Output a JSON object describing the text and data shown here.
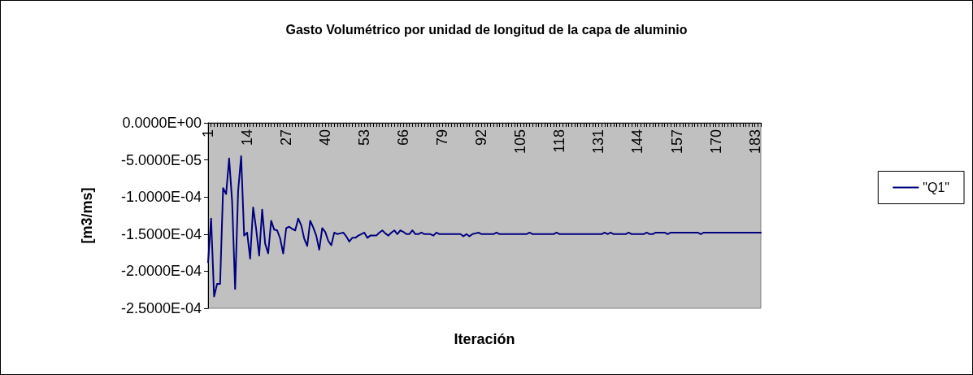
{
  "chart_data": {
    "type": "line",
    "title": "Gasto Volumétrico por unidad de longitud de la capa de aluminio",
    "xlabel": "Iteración",
    "ylabel": "[m3/ms]",
    "categories": [
      "1",
      null,
      null,
      null,
      null,
      null,
      null,
      null,
      null,
      null,
      null,
      null,
      null,
      "14",
      null,
      null,
      null,
      null,
      null,
      null,
      null,
      null,
      null,
      null,
      null,
      null,
      "27",
      null,
      null,
      null,
      null,
      null,
      null,
      null,
      null,
      null,
      null,
      null,
      null,
      "40",
      null,
      null,
      null,
      null,
      null,
      null,
      null,
      null,
      null,
      null,
      null,
      null,
      "53",
      null,
      null,
      null,
      null,
      null,
      null,
      null,
      null,
      null,
      null,
      null,
      null,
      "66",
      null,
      null,
      null,
      null,
      null,
      null,
      null,
      null,
      null,
      null,
      null,
      null,
      "79",
      null,
      null,
      null,
      null,
      null,
      null,
      null,
      null,
      null,
      null,
      null,
      null,
      "92",
      null,
      null,
      null,
      null,
      null,
      null,
      null,
      null,
      null,
      null,
      null,
      null,
      "105",
      null,
      null,
      null,
      null,
      null,
      null,
      null,
      null,
      null,
      null,
      null,
      null,
      "118",
      null,
      null,
      null,
      null,
      null,
      null,
      null,
      null,
      null,
      null,
      null,
      null,
      "131",
      null,
      null,
      null,
      null,
      null,
      null,
      null,
      null,
      null,
      null,
      null,
      null,
      "144",
      null,
      null,
      null,
      null,
      null,
      null,
      null,
      null,
      null,
      null,
      null,
      null,
      "157",
      null,
      null,
      null,
      null,
      null,
      null,
      null,
      null,
      null,
      null,
      null,
      null,
      "170",
      null,
      null,
      null,
      null,
      null,
      null,
      null,
      null,
      null,
      null,
      null,
      null,
      "183",
      null,
      null
    ],
    "series": [
      {
        "name": "\"Q1\"",
        "color": "#000080",
        "values": [
          -0.000188,
          -0.000129,
          -0.000234,
          -0.000217,
          -0.000217,
          -8.8e-05,
          -9.6e-05,
          -4.8e-05,
          -0.000106,
          -0.000224,
          -9.2e-05,
          -4.5e-05,
          -0.000152,
          -0.000148,
          -0.000183,
          -0.000114,
          -0.000143,
          -0.000179,
          -0.000117,
          -0.000163,
          -0.000176,
          -0.000132,
          -0.000144,
          -0.000145,
          -0.000156,
          -0.000176,
          -0.000142,
          -0.00014,
          -0.000143,
          -0.000145,
          -0.000129,
          -0.000138,
          -0.000156,
          -0.000166,
          -0.000132,
          -0.000141,
          -0.000152,
          -0.000171,
          -0.000142,
          -0.000147,
          -0.000159,
          -0.000165,
          -0.000148,
          -0.00015,
          -0.000149,
          -0.000148,
          -0.000153,
          -0.00016,
          -0.000155,
          -0.000155,
          -0.000152,
          -0.00015,
          -0.000148,
          -0.000155,
          -0.000152,
          -0.000152,
          -0.000152,
          -0.000148,
          -0.000145,
          -0.000149,
          -0.000152,
          -0.000148,
          -0.000145,
          -0.00015,
          -0.000145,
          -0.000147,
          -0.00015,
          -0.00015,
          -0.000145,
          -0.00015,
          -0.00015,
          -0.000148,
          -0.00015,
          -0.00015,
          -0.00015,
          -0.000152,
          -0.000148,
          -0.00015,
          -0.00015,
          -0.00015,
          -0.00015,
          -0.00015,
          -0.00015,
          -0.00015,
          -0.00015,
          -0.000153,
          -0.00015,
          -0.000153,
          -0.00015,
          -0.000149,
          -0.000148,
          -0.00015,
          -0.00015,
          -0.00015,
          -0.00015,
          -0.00015,
          -0.000148,
          -0.00015,
          -0.00015,
          -0.00015,
          -0.00015,
          -0.00015,
          -0.00015,
          -0.00015,
          -0.00015,
          -0.00015,
          -0.00015,
          -0.000148,
          -0.00015,
          -0.00015,
          -0.00015,
          -0.00015,
          -0.00015,
          -0.00015,
          -0.00015,
          -0.00015,
          -0.000148,
          -0.00015,
          -0.00015,
          -0.00015,
          -0.00015,
          -0.00015,
          -0.00015,
          -0.00015,
          -0.00015,
          -0.00015,
          -0.00015,
          -0.00015,
          -0.00015,
          -0.00015,
          -0.00015,
          -0.00015,
          -0.000148,
          -0.00015,
          -0.000148,
          -0.00015,
          -0.00015,
          -0.00015,
          -0.00015,
          -0.00015,
          -0.000148,
          -0.00015,
          -0.00015,
          -0.00015,
          -0.00015,
          -0.00015,
          -0.000148,
          -0.00015,
          -0.00015,
          -0.000148,
          -0.000148,
          -0.000148,
          -0.000148,
          -0.00015,
          -0.000148,
          -0.000148,
          -0.000148,
          -0.000148,
          -0.000148,
          -0.000148,
          -0.000148,
          -0.000148,
          -0.000148,
          -0.000148,
          -0.00015,
          -0.000148,
          -0.000148,
          -0.000148,
          -0.000148,
          -0.000148,
          -0.000148,
          -0.000148,
          -0.000148,
          -0.000148,
          -0.000148,
          -0.000148,
          -0.000148,
          -0.000148,
          -0.000148,
          -0.000148,
          -0.000148,
          -0.000148,
          -0.000148,
          -0.000148,
          -0.000148
        ]
      }
    ],
    "ylim": [
      -0.00025,
      0
    ],
    "yticks": [
      {
        "value": -0.00025,
        "label": "-2.5000E-04"
      },
      {
        "value": -0.0002,
        "label": "-2.0000E-04"
      },
      {
        "value": -0.00015,
        "label": "-1.5000E-04"
      },
      {
        "value": -0.0001,
        "label": "-1.0000E-04"
      },
      {
        "value": -5e-05,
        "label": "-5.0000E-05"
      },
      {
        "value": 0,
        "label": "0.0000E+00"
      }
    ],
    "grid": false,
    "legend": "right",
    "marker": "none",
    "line_style": "solid"
  }
}
